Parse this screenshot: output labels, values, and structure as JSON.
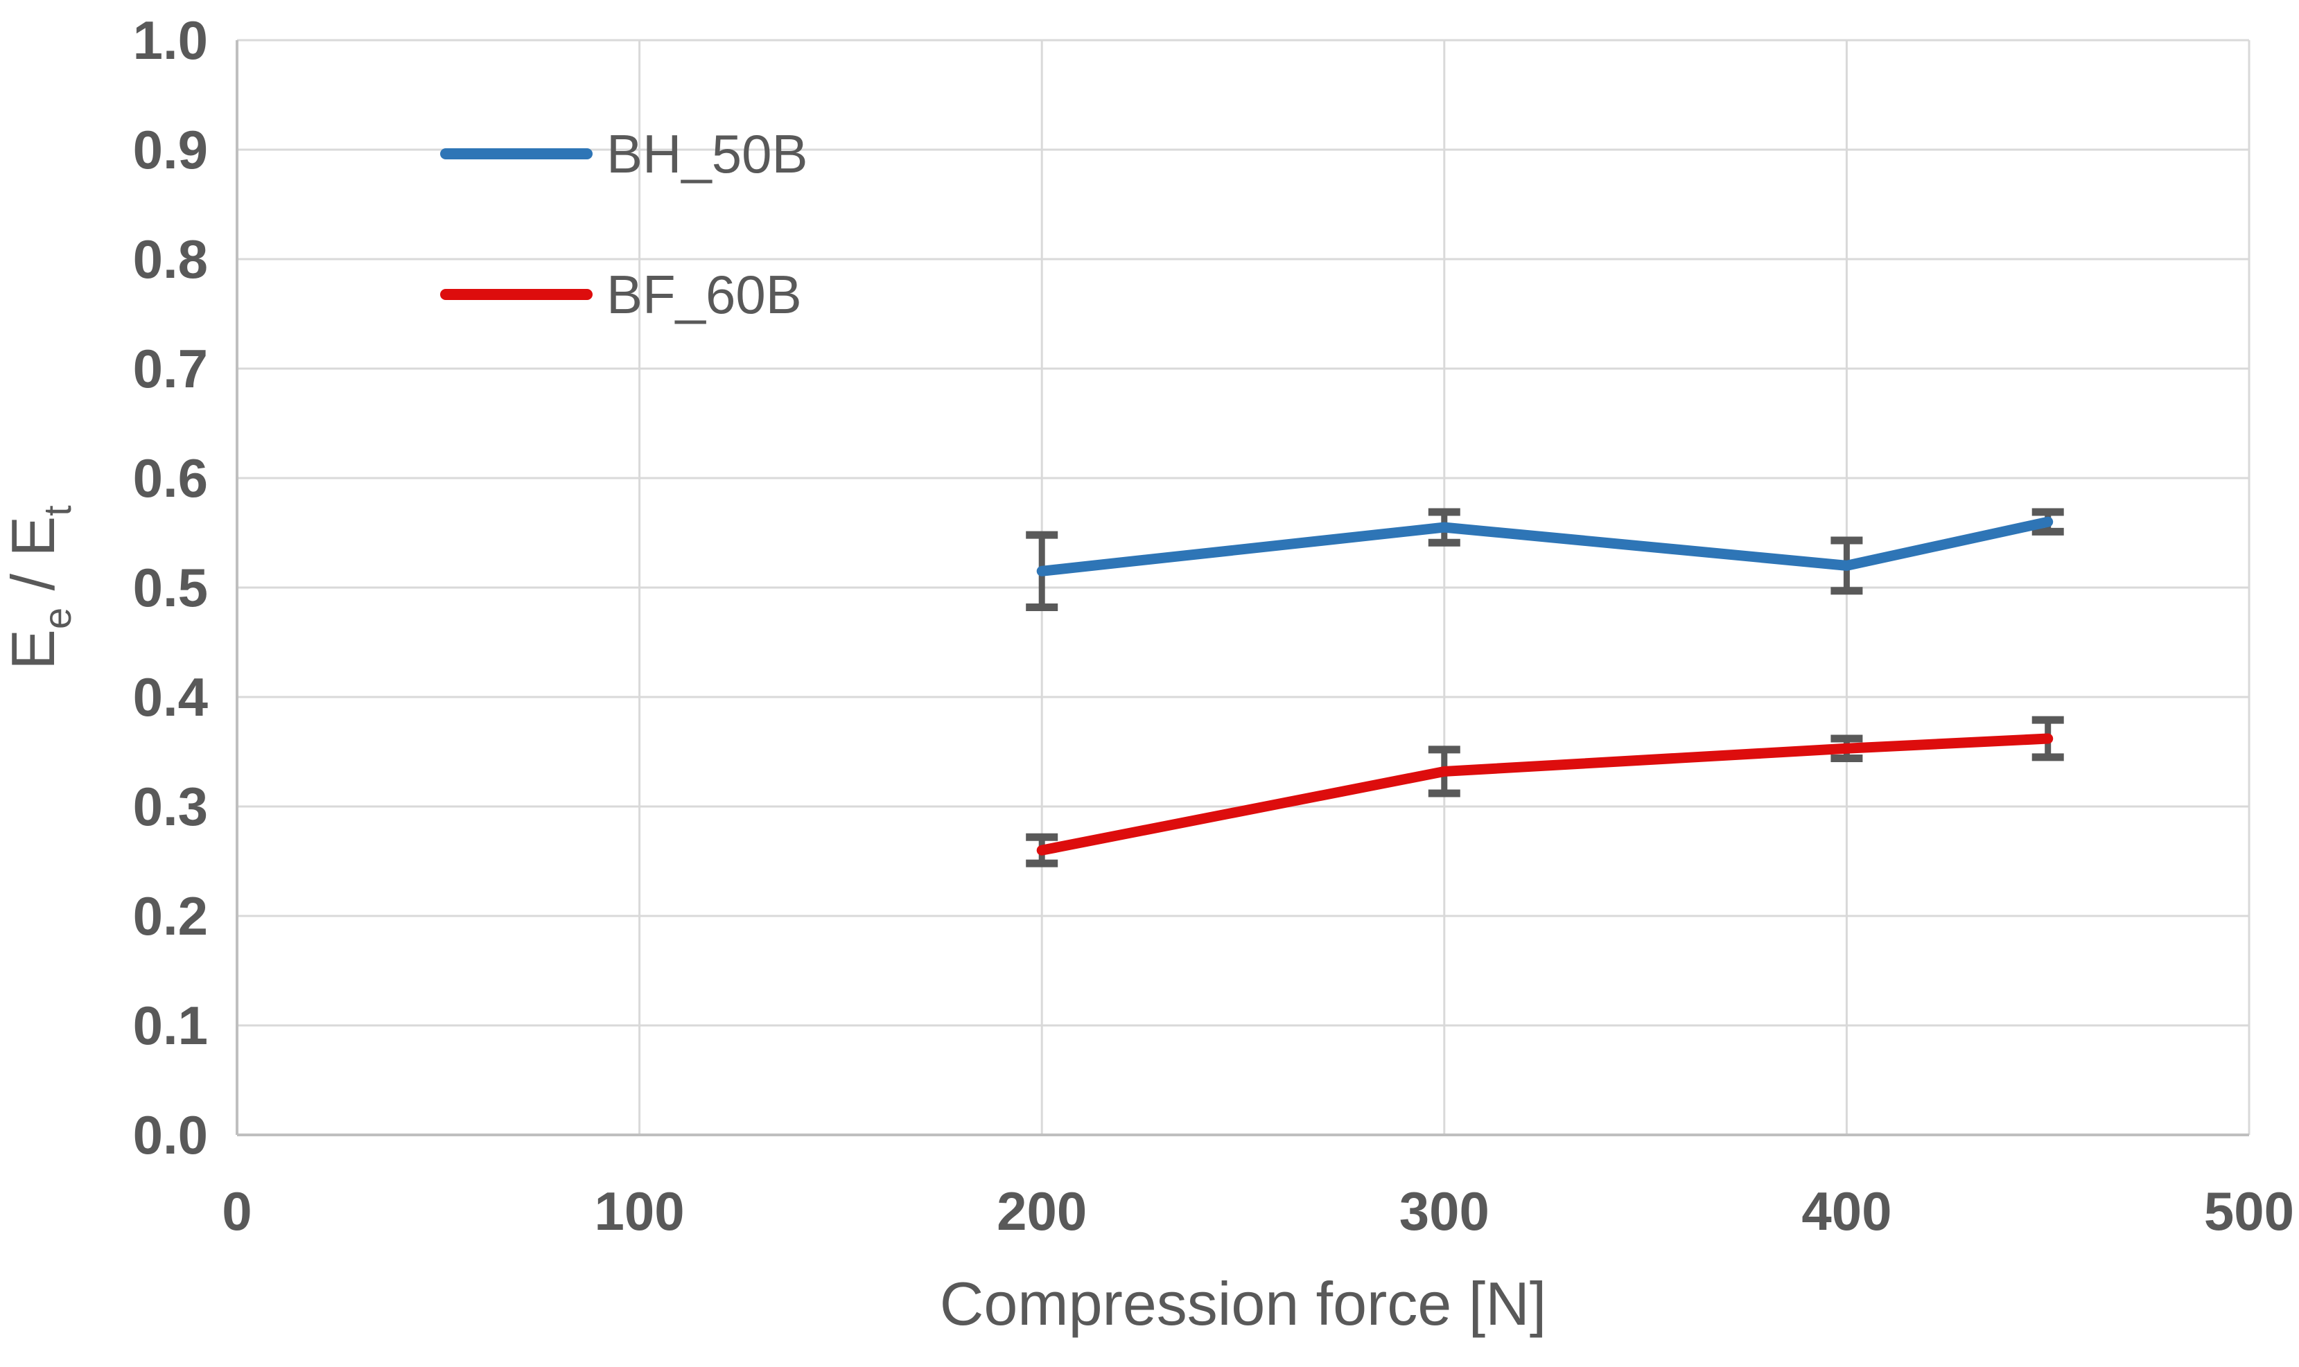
{
  "chart_data": {
    "type": "line",
    "x": [
      200,
      300,
      400,
      450
    ],
    "series": [
      {
        "name": "BH_50B",
        "color": "#2E75B6",
        "values": [
          0.515,
          0.555,
          0.52,
          0.56
        ],
        "errors": [
          0.033,
          0.014,
          0.023,
          0.009
        ]
      },
      {
        "name": "BF_60B",
        "color": "#DD0D0D",
        "values": [
          0.26,
          0.332,
          0.353,
          0.362
        ],
        "errors": [
          0.012,
          0.02,
          0.009,
          0.017
        ]
      }
    ],
    "title": "",
    "xlabel": "Compression force [N]",
    "ylabel": "Ee / Et",
    "ylabel_parts": [
      {
        "t": "E",
        "sub": false
      },
      {
        "t": "e",
        "sub": true
      },
      {
        "t": " / ",
        "sub": false
      },
      {
        "t": "E",
        "sub": false
      },
      {
        "t": "t",
        "sub": true
      }
    ],
    "xlim": [
      0,
      500
    ],
    "ylim": [
      0.0,
      1.0
    ],
    "x_tick_values": [
      0,
      100,
      200,
      300,
      400,
      500
    ],
    "x_tick_labels": [
      "0",
      "100",
      "200",
      "300",
      "400",
      "500"
    ],
    "y_tick_values": [
      0.0,
      0.1,
      0.2,
      0.3,
      0.4,
      0.5,
      0.6,
      0.7,
      0.8,
      0.9,
      1.0
    ],
    "y_tick_labels": [
      "0.0",
      "0.1",
      "0.2",
      "0.3",
      "0.4",
      "0.5",
      "0.6",
      "0.7",
      "0.8",
      "0.9",
      "1.0"
    ],
    "grid": true,
    "legend_position": "inside-top-left",
    "colors": {
      "grid_line": "#D9D9D9",
      "axis_line": "#BFBFBF",
      "text": "#595959",
      "error_bar": "#595959",
      "background": "#FFFFFF"
    }
  }
}
